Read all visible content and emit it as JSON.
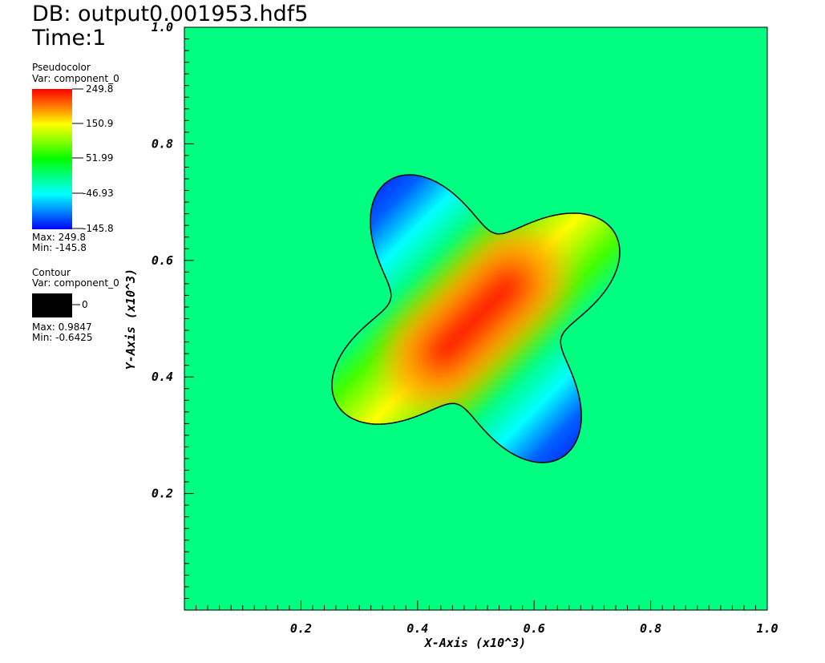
{
  "header": {
    "db_label": "DB: output0.001953.hdf5",
    "time_label": "Time:1"
  },
  "pseudocolor_legend": {
    "title": "Pseudocolor",
    "var": "Var: component_0",
    "ticks": [
      "249.8",
      "150.9",
      "51.99",
      "-46.93",
      "-145.8"
    ],
    "max": "Max:  249.8",
    "min": "Min:  -145.8",
    "colors": {
      "red": "#ff0000",
      "yellow": "#ffff00",
      "green": "#00ff00",
      "cyan": "#00ffff",
      "blue": "#0000ff"
    }
  },
  "contour_legend": {
    "title": "Contour",
    "var": "Var: component_0",
    "tick": "0",
    "max": "Max:  0.9847",
    "min": "Min: -0.6425",
    "swatch_color": "#000000"
  },
  "chart_data": {
    "type": "heatmap",
    "title": "",
    "xlabel": "X-Axis (x10^3)",
    "ylabel": "Y-Axis (x10^3)",
    "xlim": [
      0.0,
      1.0
    ],
    "ylim": [
      0.0,
      1.0
    ],
    "x_ticks": [
      "0.2",
      "0.4",
      "0.6",
      "0.8",
      "1.0"
    ],
    "y_ticks": [
      "0.2",
      "0.4",
      "0.6",
      "0.8",
      "1.0"
    ],
    "value_range": [
      -145.8,
      249.8
    ],
    "background_value": 51.99,
    "contour_level": 0,
    "contour_shape": {
      "center": [
        0.5,
        0.5
      ],
      "base_radius": 0.215,
      "lobes": 4,
      "lobe_amplitude": 0.065,
      "rotation_deg": 32
    },
    "peak_region": {
      "center": [
        0.5,
        0.5
      ],
      "orientation_deg": 45,
      "max_value": 249.8
    },
    "min_regions": [
      {
        "location": "upper-left lobe",
        "approx_center": [
          0.27,
          0.65
        ],
        "value": -145.8
      },
      {
        "location": "lower-right lobe",
        "approx_center": [
          0.67,
          0.33
        ],
        "value": -145.8
      }
    ]
  }
}
